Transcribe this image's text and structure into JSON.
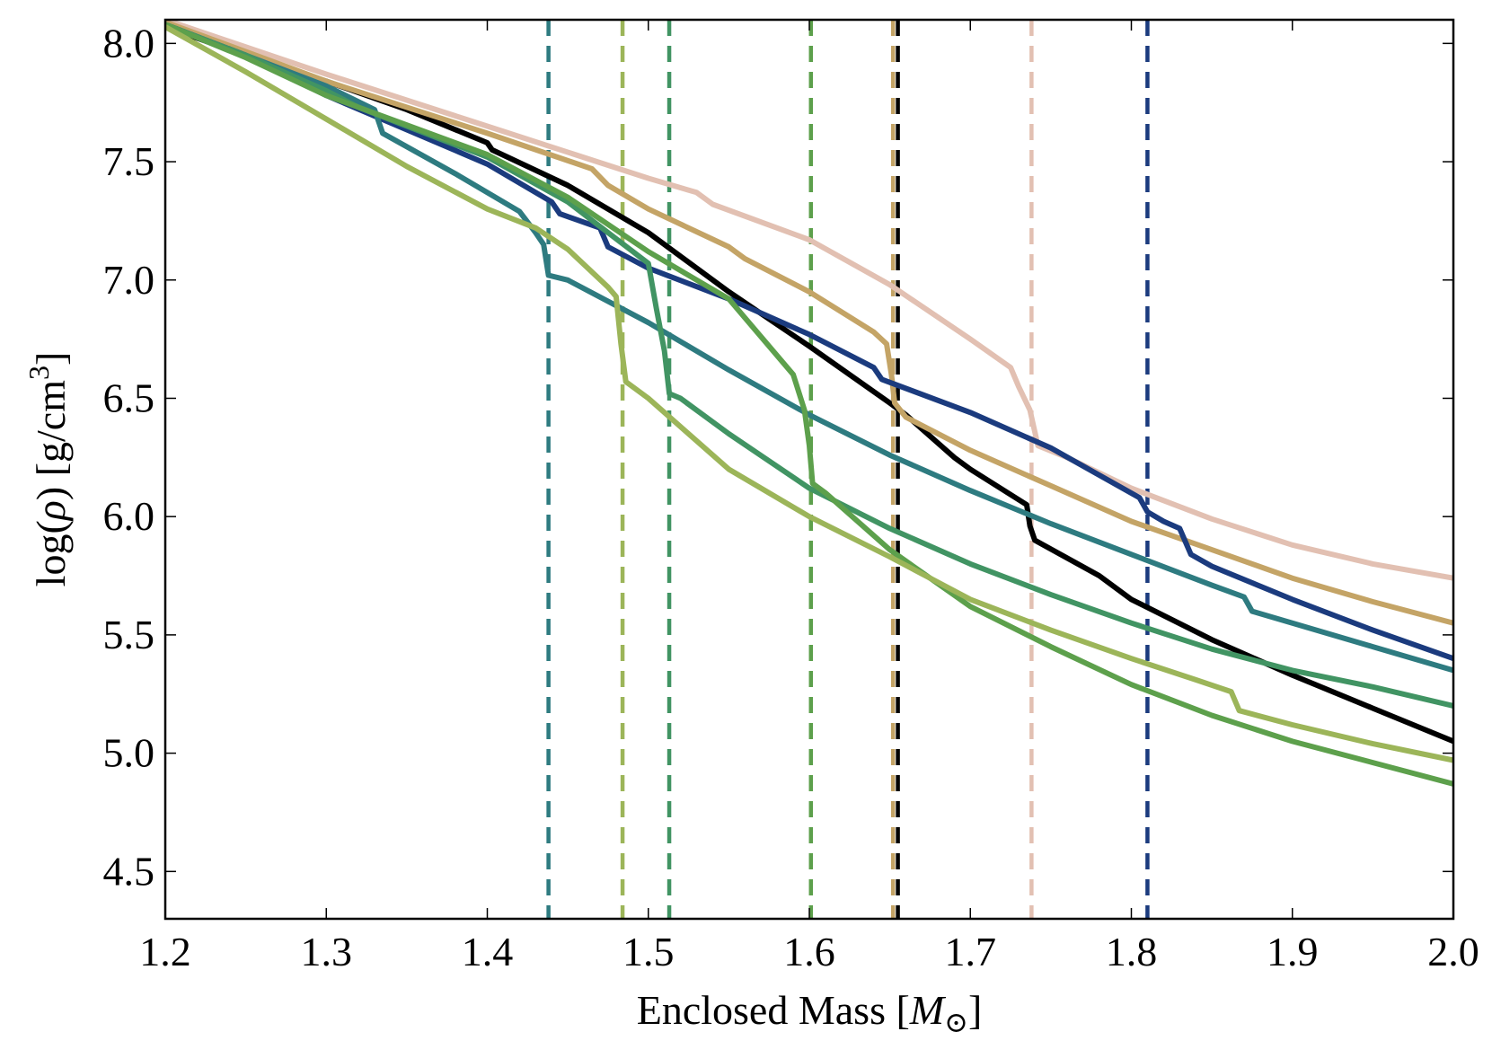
{
  "chart_data": {
    "type": "line",
    "title": "",
    "xlabel_main": "Enclosed Mass [",
    "xlabel_symbol": "M",
    "xlabel_sub": "⊙",
    "xlabel_close": "]",
    "ylabel_main": "log(",
    "ylabel_symbol": "ρ",
    "ylabel_mid": ") [g/cm",
    "ylabel_sup": "3",
    "ylabel_close": "]",
    "xlim": [
      1.2,
      2.0
    ],
    "ylim": [
      4.3,
      8.1
    ],
    "xticks": [
      1.2,
      1.3,
      1.4,
      1.5,
      1.6,
      1.7,
      1.8,
      1.9,
      2.0
    ],
    "xtick_labels": [
      "1.2",
      "1.3",
      "1.4",
      "1.5",
      "1.6",
      "1.7",
      "1.8",
      "1.9",
      "2.0"
    ],
    "yticks": [
      4.5,
      5.0,
      5.5,
      6.0,
      6.5,
      7.0,
      7.5,
      8.0
    ],
    "ytick_labels": [
      "4.5",
      "5.0",
      "5.5",
      "6.0",
      "6.5",
      "7.0",
      "7.5",
      "8.0"
    ],
    "grid": false,
    "legend": "none",
    "series": [
      {
        "name": "black",
        "color": "#000000",
        "cut": 1.655,
        "points": [
          [
            1.2,
            8.07
          ],
          [
            1.25,
            7.95
          ],
          [
            1.3,
            7.84
          ],
          [
            1.35,
            7.72
          ],
          [
            1.4,
            7.58
          ],
          [
            1.403,
            7.55
          ],
          [
            1.45,
            7.4
          ],
          [
            1.5,
            7.2
          ],
          [
            1.55,
            6.95
          ],
          [
            1.6,
            6.72
          ],
          [
            1.65,
            6.48
          ],
          [
            1.66,
            6.43
          ],
          [
            1.69,
            6.25
          ],
          [
            1.7,
            6.2
          ],
          [
            1.735,
            6.05
          ],
          [
            1.737,
            5.96
          ],
          [
            1.74,
            5.9
          ],
          [
            1.78,
            5.75
          ],
          [
            1.8,
            5.65
          ],
          [
            1.85,
            5.48
          ],
          [
            1.9,
            5.33
          ],
          [
            1.95,
            5.19
          ],
          [
            2.0,
            5.05
          ]
        ]
      },
      {
        "name": "pink",
        "color": "#e2c0b2",
        "cut": 1.738,
        "points": [
          [
            1.2,
            8.1
          ],
          [
            1.3,
            7.87
          ],
          [
            1.4,
            7.65
          ],
          [
            1.5,
            7.43
          ],
          [
            1.53,
            7.37
          ],
          [
            1.54,
            7.32
          ],
          [
            1.6,
            7.17
          ],
          [
            1.65,
            6.98
          ],
          [
            1.7,
            6.75
          ],
          [
            1.725,
            6.63
          ],
          [
            1.73,
            6.55
          ],
          [
            1.737,
            6.45
          ],
          [
            1.742,
            6.3
          ],
          [
            1.76,
            6.25
          ],
          [
            1.8,
            6.12
          ],
          [
            1.85,
            5.99
          ],
          [
            1.9,
            5.88
          ],
          [
            1.95,
            5.8
          ],
          [
            2.0,
            5.74
          ]
        ]
      },
      {
        "name": "tan",
        "color": "#c4a466",
        "cut": 1.652,
        "points": [
          [
            1.2,
            8.09
          ],
          [
            1.3,
            7.84
          ],
          [
            1.4,
            7.62
          ],
          [
            1.465,
            7.47
          ],
          [
            1.475,
            7.4
          ],
          [
            1.5,
            7.3
          ],
          [
            1.55,
            7.14
          ],
          [
            1.56,
            7.09
          ],
          [
            1.6,
            6.95
          ],
          [
            1.64,
            6.78
          ],
          [
            1.648,
            6.73
          ],
          [
            1.651,
            6.6
          ],
          [
            1.653,
            6.48
          ],
          [
            1.66,
            6.42
          ],
          [
            1.7,
            6.28
          ],
          [
            1.75,
            6.13
          ],
          [
            1.8,
            5.98
          ],
          [
            1.85,
            5.86
          ],
          [
            1.9,
            5.74
          ],
          [
            1.95,
            5.64
          ],
          [
            2.0,
            5.55
          ]
        ]
      },
      {
        "name": "navy",
        "color": "#1b3b7e",
        "cut": 1.81,
        "points": [
          [
            1.2,
            8.08
          ],
          [
            1.25,
            7.95
          ],
          [
            1.3,
            7.78
          ],
          [
            1.4,
            7.49
          ],
          [
            1.44,
            7.33
          ],
          [
            1.445,
            7.28
          ],
          [
            1.47,
            7.22
          ],
          [
            1.475,
            7.14
          ],
          [
            1.5,
            7.05
          ],
          [
            1.55,
            6.92
          ],
          [
            1.6,
            6.77
          ],
          [
            1.64,
            6.63
          ],
          [
            1.645,
            6.58
          ],
          [
            1.7,
            6.44
          ],
          [
            1.75,
            6.29
          ],
          [
            1.805,
            6.08
          ],
          [
            1.81,
            6.02
          ],
          [
            1.82,
            5.98
          ],
          [
            1.83,
            5.95
          ],
          [
            1.837,
            5.84
          ],
          [
            1.85,
            5.79
          ],
          [
            1.9,
            5.65
          ],
          [
            1.95,
            5.52
          ],
          [
            2.0,
            5.4
          ]
        ]
      },
      {
        "name": "teal",
        "color": "#2e7b80",
        "cut": 1.438,
        "points": [
          [
            1.2,
            8.08
          ],
          [
            1.25,
            7.95
          ],
          [
            1.3,
            7.82
          ],
          [
            1.33,
            7.72
          ],
          [
            1.335,
            7.62
          ],
          [
            1.38,
            7.45
          ],
          [
            1.42,
            7.29
          ],
          [
            1.43,
            7.2
          ],
          [
            1.435,
            7.15
          ],
          [
            1.438,
            7.02
          ],
          [
            1.45,
            7.0
          ],
          [
            1.5,
            6.82
          ],
          [
            1.55,
            6.62
          ],
          [
            1.6,
            6.43
          ],
          [
            1.65,
            6.26
          ],
          [
            1.7,
            6.11
          ],
          [
            1.75,
            5.97
          ],
          [
            1.8,
            5.84
          ],
          [
            1.85,
            5.71
          ],
          [
            1.87,
            5.66
          ],
          [
            1.875,
            5.6
          ],
          [
            1.9,
            5.55
          ],
          [
            1.95,
            5.45
          ],
          [
            2.0,
            5.35
          ]
        ]
      },
      {
        "name": "green",
        "color": "#419463",
        "cut": 1.513,
        "points": [
          [
            1.2,
            8.08
          ],
          [
            1.25,
            7.95
          ],
          [
            1.3,
            7.8
          ],
          [
            1.32,
            7.73
          ],
          [
            1.35,
            7.65
          ],
          [
            1.4,
            7.52
          ],
          [
            1.45,
            7.33
          ],
          [
            1.5,
            7.07
          ],
          [
            1.505,
            6.88
          ],
          [
            1.51,
            6.7
          ],
          [
            1.513,
            6.52
          ],
          [
            1.52,
            6.5
          ],
          [
            1.55,
            6.35
          ],
          [
            1.6,
            6.12
          ],
          [
            1.65,
            5.95
          ],
          [
            1.7,
            5.8
          ],
          [
            1.75,
            5.67
          ],
          [
            1.8,
            5.55
          ],
          [
            1.85,
            5.44
          ],
          [
            1.9,
            5.35
          ],
          [
            1.95,
            5.28
          ],
          [
            2.0,
            5.2
          ]
        ]
      },
      {
        "name": "midgreen",
        "color": "#5da04c",
        "cut": 1.601,
        "points": [
          [
            1.2,
            8.08
          ],
          [
            1.25,
            7.94
          ],
          [
            1.3,
            7.78
          ],
          [
            1.4,
            7.53
          ],
          [
            1.45,
            7.35
          ],
          [
            1.5,
            7.12
          ],
          [
            1.55,
            6.92
          ],
          [
            1.59,
            6.6
          ],
          [
            1.597,
            6.45
          ],
          [
            1.6,
            6.3
          ],
          [
            1.602,
            6.14
          ],
          [
            1.61,
            6.1
          ],
          [
            1.65,
            5.86
          ],
          [
            1.7,
            5.62
          ],
          [
            1.75,
            5.45
          ],
          [
            1.8,
            5.29
          ],
          [
            1.85,
            5.16
          ],
          [
            1.9,
            5.05
          ],
          [
            1.95,
            4.96
          ],
          [
            2.0,
            4.87
          ]
        ]
      },
      {
        "name": "olive",
        "color": "#9cb559",
        "cut": 1.484,
        "points": [
          [
            1.2,
            8.07
          ],
          [
            1.25,
            7.88
          ],
          [
            1.3,
            7.68
          ],
          [
            1.35,
            7.48
          ],
          [
            1.4,
            7.3
          ],
          [
            1.43,
            7.22
          ],
          [
            1.45,
            7.13
          ],
          [
            1.475,
            6.97
          ],
          [
            1.48,
            6.93
          ],
          [
            1.483,
            6.73
          ],
          [
            1.486,
            6.57
          ],
          [
            1.5,
            6.5
          ],
          [
            1.55,
            6.2
          ],
          [
            1.6,
            6.0
          ],
          [
            1.65,
            5.83
          ],
          [
            1.7,
            5.65
          ],
          [
            1.75,
            5.52
          ],
          [
            1.8,
            5.4
          ],
          [
            1.84,
            5.31
          ],
          [
            1.862,
            5.26
          ],
          [
            1.867,
            5.18
          ],
          [
            1.9,
            5.12
          ],
          [
            1.95,
            5.04
          ],
          [
            2.0,
            4.97
          ]
        ]
      }
    ]
  }
}
